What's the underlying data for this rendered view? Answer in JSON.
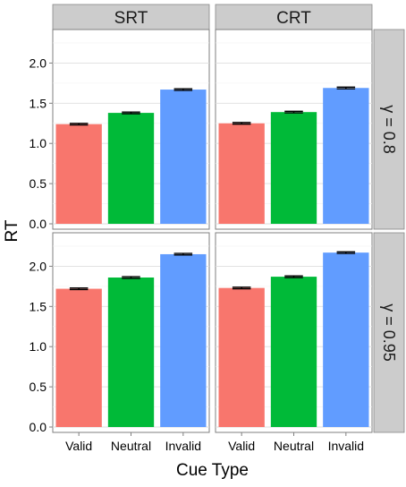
{
  "chart_data": {
    "type": "bar",
    "facet_columns": [
      "SRT",
      "CRT"
    ],
    "facet_rows": [
      "γ = 0.8",
      "γ = 0.95"
    ],
    "categories": [
      "Valid",
      "Neutral",
      "Invalid"
    ],
    "xlabel": "Cue Type",
    "ylabel": "RT",
    "ylim": [
      0,
      2.35
    ],
    "yticks": [
      "0.0",
      "0.5",
      "1.0",
      "1.5",
      "2.0"
    ],
    "grid": true,
    "colors": {
      "Valid": "#F8766D",
      "Neutral": "#00BA38",
      "Invalid": "#619CFF"
    },
    "panels": [
      {
        "column": "SRT",
        "row": "γ = 0.8",
        "values": [
          1.24,
          1.38,
          1.67
        ],
        "errors": [
          0.01,
          0.01,
          0.01
        ]
      },
      {
        "column": "CRT",
        "row": "γ = 0.8",
        "values": [
          1.25,
          1.39,
          1.69
        ],
        "errors": [
          0.01,
          0.01,
          0.01
        ]
      },
      {
        "column": "SRT",
        "row": "γ = 0.95",
        "values": [
          1.72,
          1.86,
          2.15
        ],
        "errors": [
          0.01,
          0.01,
          0.01
        ]
      },
      {
        "column": "CRT",
        "row": "γ = 0.95",
        "values": [
          1.73,
          1.87,
          2.17
        ],
        "errors": [
          0.01,
          0.01,
          0.01
        ]
      }
    ]
  }
}
